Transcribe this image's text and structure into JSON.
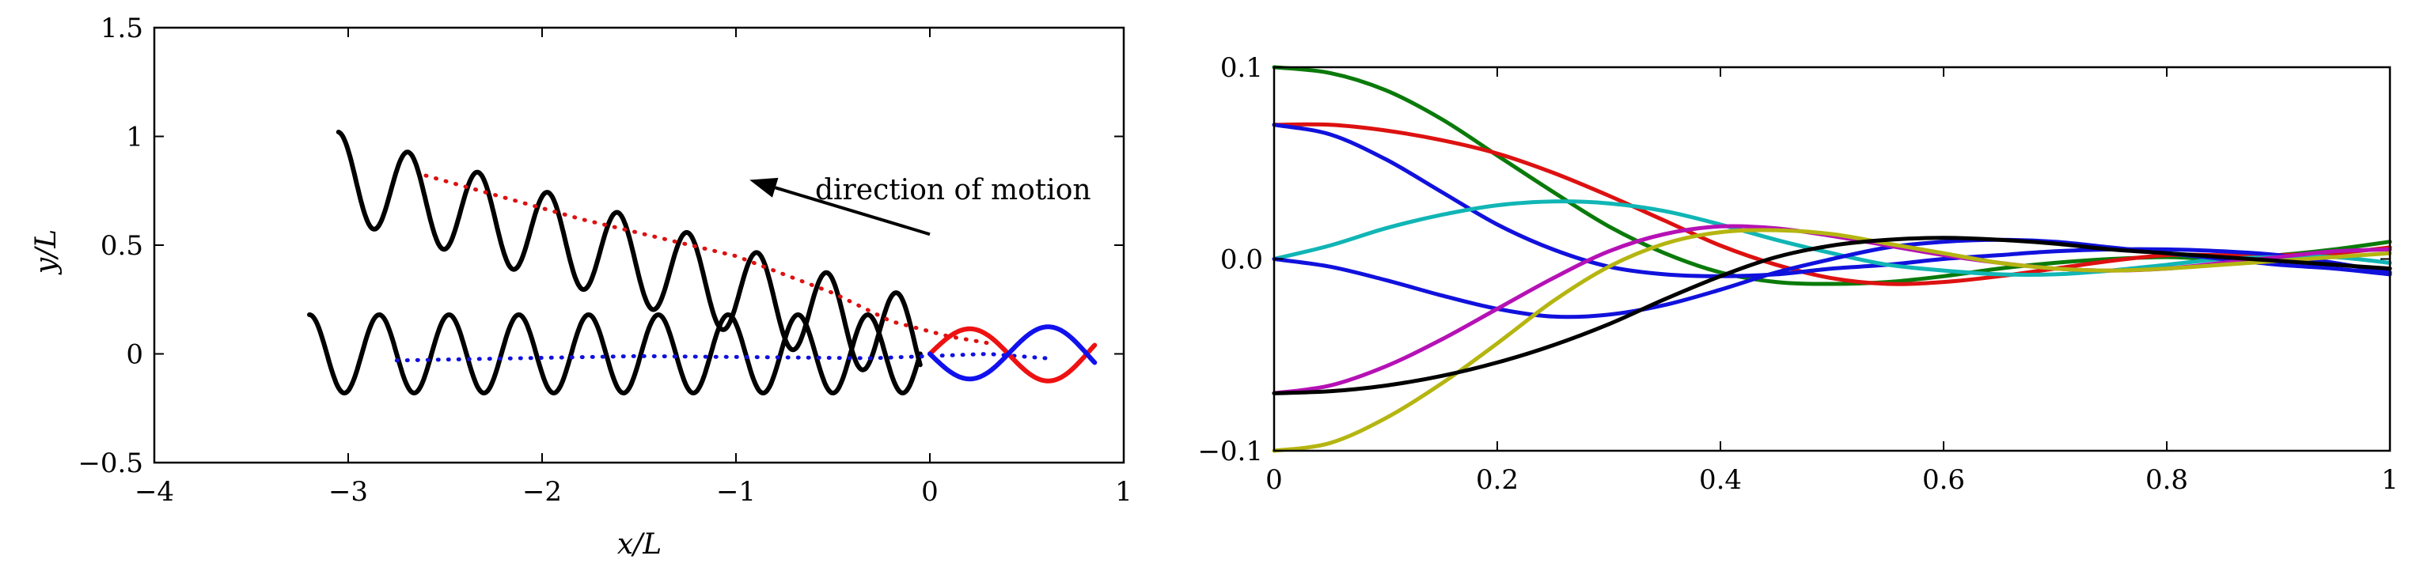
{
  "chart_data": [
    {
      "type": "line",
      "xlabel": "x/L",
      "ylabel": "y/L",
      "xlim": [
        -4,
        1
      ],
      "ylim": [
        -0.5,
        1.5
      ],
      "xticks": [
        -4,
        -3,
        -2,
        -1,
        0,
        1
      ],
      "xtick_labels": [
        "−4",
        "−3",
        "−2",
        "−1",
        "0",
        "1"
      ],
      "yticks": [
        -0.5,
        0,
        0.5,
        1,
        1.5
      ],
      "ytick_labels": [
        "−0.5",
        "0",
        "0.5",
        "1",
        "1.5"
      ],
      "annotation": {
        "text": "direction of motion",
        "arrow_from": [
          0.0,
          0.55
        ],
        "arrow_to": [
          -0.93,
          0.8
        ]
      },
      "series": [
        {
          "role": "tilted swimmer path",
          "style": "solid",
          "color": "#000000",
          "x_start": -3.05,
          "x_end": -0.05,
          "y_start": 0.82,
          "y_end": 0.05,
          "amplitude": 0.2,
          "wavelength": 0.36
        },
        {
          "role": "straight swimmer path",
          "style": "solid",
          "color": "#000000",
          "x_start": -3.2,
          "x_end": -0.05,
          "y_start": 0.0,
          "y_end": 0.0,
          "amplitude": 0.18,
          "wavelength": 0.36
        },
        {
          "role": "tilted centerline",
          "style": "dotted",
          "color": "#dd1111",
          "x": [
            -2.6,
            -1.8,
            -1.0,
            -0.5,
            -0.2,
            0.1,
            0.3
          ],
          "y": [
            0.82,
            0.62,
            0.45,
            0.28,
            0.15,
            0.08,
            0.05
          ]
        },
        {
          "role": "straight centerline",
          "style": "dotted",
          "color": "#1111dd",
          "x": [
            -2.75,
            -1.5,
            -0.3,
            0.3,
            0.6
          ],
          "y": [
            -0.03,
            -0.01,
            -0.02,
            0.0,
            -0.02
          ]
        },
        {
          "role": "red body shape",
          "style": "solid",
          "color": "#ee1111",
          "x_start": 0.0,
          "x_end": 0.85,
          "amplitude": 0.13,
          "phase": 0.0
        },
        {
          "role": "blue body shape",
          "style": "solid",
          "color": "#1111ee",
          "x_start": 0.0,
          "x_end": 0.85,
          "amplitude": 0.13,
          "phase": 3.14159
        }
      ]
    },
    {
      "type": "line",
      "xlim": [
        0,
        1
      ],
      "ylim": [
        -0.1,
        0.1
      ],
      "xticks": [
        0,
        0.2,
        0.4,
        0.6,
        0.8,
        1
      ],
      "xtick_labels": [
        "0",
        "0.2",
        "0.4",
        "0.6",
        "0.8",
        "1"
      ],
      "yticks": [
        -0.1,
        0,
        0.1
      ],
      "ytick_labels": [
        "−0.1",
        "0.0",
        "0.1"
      ],
      "x": [
        0,
        0.05,
        0.1,
        0.15,
        0.2,
        0.25,
        0.3,
        0.35,
        0.4,
        0.45,
        0.5,
        0.55,
        0.6,
        0.65,
        0.7,
        0.75,
        0.8,
        0.85,
        0.9,
        0.95,
        1.0
      ],
      "series": [
        {
          "color": "#0a7a0a",
          "values": [
            0.1,
            0.097,
            0.088,
            0.073,
            0.054,
            0.035,
            0.017,
            0.003,
            -0.007,
            -0.012,
            -0.013,
            -0.012,
            -0.009,
            -0.005,
            -0.002,
            0.0,
            0.001,
            0.0,
            0.002,
            0.005,
            0.009
          ]
        },
        {
          "color": "#dd1111",
          "values": [
            0.07,
            0.07,
            0.067,
            0.062,
            0.055,
            0.045,
            0.033,
            0.02,
            0.007,
            -0.003,
            -0.01,
            -0.013,
            -0.012,
            -0.009,
            -0.005,
            -0.001,
            0.002,
            0.002,
            0.002,
            0.003,
            0.006
          ]
        },
        {
          "color": "#1111dd",
          "values": [
            0.07,
            0.065,
            0.052,
            0.035,
            0.018,
            0.005,
            -0.004,
            -0.008,
            -0.009,
            -0.008,
            -0.005,
            -0.003,
            0.0,
            0.002,
            0.004,
            0.005,
            0.005,
            0.004,
            0.002,
            -0.002,
            -0.007
          ]
        },
        {
          "color": "#11b5b5",
          "values": [
            0.0,
            0.007,
            0.016,
            0.023,
            0.028,
            0.03,
            0.029,
            0.025,
            0.018,
            0.01,
            0.003,
            -0.003,
            -0.006,
            -0.008,
            -0.008,
            -0.006,
            -0.003,
            0.0,
            0.001,
            0.001,
            -0.002
          ]
        },
        {
          "color": "#1111dd",
          "values": [
            0.0,
            -0.004,
            -0.011,
            -0.019,
            -0.026,
            -0.03,
            -0.029,
            -0.024,
            -0.016,
            -0.007,
            0.0,
            0.006,
            0.009,
            0.01,
            0.009,
            0.006,
            0.003,
            0.0,
            -0.003,
            -0.005,
            -0.008
          ]
        },
        {
          "color": "#b511b5",
          "values": [
            -0.07,
            -0.066,
            -0.056,
            -0.042,
            -0.026,
            -0.01,
            0.004,
            0.013,
            0.017,
            0.016,
            0.012,
            0.007,
            0.002,
            -0.002,
            -0.005,
            -0.006,
            -0.005,
            -0.002,
            0.001,
            0.004,
            0.005
          ]
        },
        {
          "color": "#b5b511",
          "values": [
            -0.1,
            -0.096,
            -0.083,
            -0.065,
            -0.044,
            -0.022,
            -0.004,
            0.008,
            0.014,
            0.015,
            0.013,
            0.008,
            0.003,
            -0.002,
            -0.005,
            -0.006,
            -0.005,
            -0.003,
            -0.001,
            0.001,
            0.003
          ]
        },
        {
          "color": "#000000",
          "values": [
            -0.07,
            -0.069,
            -0.066,
            -0.061,
            -0.054,
            -0.045,
            -0.034,
            -0.021,
            -0.009,
            0.001,
            0.007,
            0.01,
            0.011,
            0.01,
            0.008,
            0.005,
            0.003,
            0.001,
            -0.001,
            -0.003,
            -0.005
          ]
        }
      ]
    }
  ]
}
